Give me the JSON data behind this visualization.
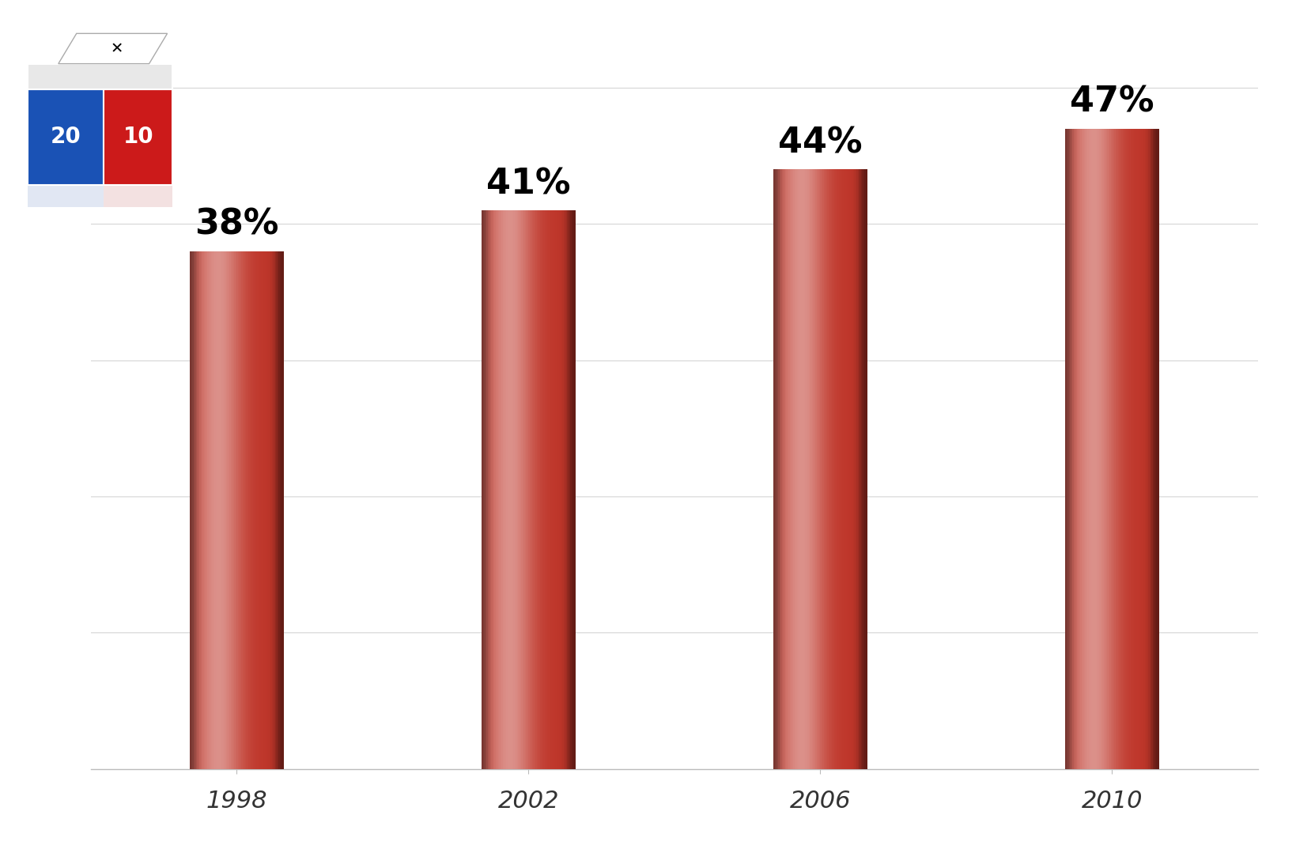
{
  "categories": [
    "1998",
    "2002",
    "2006",
    "2010"
  ],
  "values": [
    38,
    41,
    44,
    47
  ],
  "labels": [
    "38%",
    "41%",
    "44%",
    "47%"
  ],
  "bar_color_main": "#be3529",
  "bar_color_light": "#d96050",
  "bar_color_highlight": "#e8847a",
  "bar_color_dark": "#8b1c14",
  "bar_color_edge_dark": "#7a1810",
  "background_color": "#ffffff",
  "grid_color": "#d8d8d8",
  "label_fontsize": 32,
  "tick_fontsize": 22,
  "ylim_max": 52,
  "bar_width": 0.32,
  "x_positions": [
    0,
    1,
    2,
    3
  ],
  "xlim": [
    -0.5,
    3.5
  ],
  "logo_blue": "#1a52b5",
  "logo_red": "#cc1a1a",
  "logo_top": "#e8e8e8"
}
